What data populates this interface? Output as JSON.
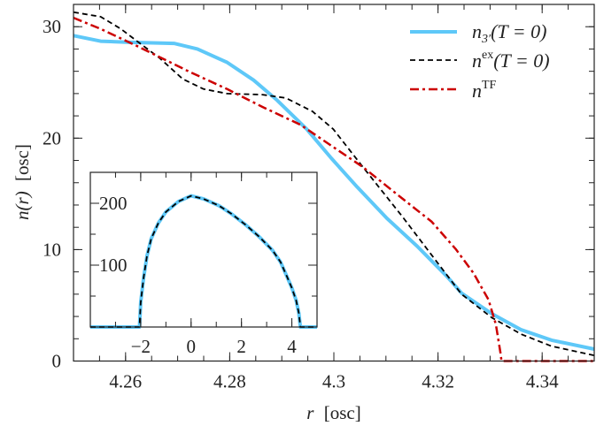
{
  "chart_data": [
    {
      "type": "line",
      "title": "",
      "xlabel": {
        "var": "r",
        "unit": "[osc]"
      },
      "ylabel": {
        "var": "n(r)",
        "unit": "[osc]"
      },
      "xlim": [
        4.25,
        4.35
      ],
      "ylim": [
        0,
        32
      ],
      "xticks": [
        "4.26",
        "4.28",
        "4.3",
        "4.32",
        "4.34"
      ],
      "yticks": [
        "0",
        "10",
        "20",
        "30"
      ],
      "grid": false,
      "legend_position": "top-right",
      "series": [
        {
          "name": {
            "base": "n",
            "sub": "3′",
            "sup": "",
            "tail": "(T = 0)"
          },
          "color": "#5ec8f8",
          "style": "solid",
          "x": [
            4.25,
            4.2552,
            4.2608,
            4.2693,
            4.2738,
            4.2795,
            4.2846,
            4.2891,
            4.2948,
            4.2995,
            4.3045,
            4.3102,
            4.316,
            4.3217,
            4.3245,
            4.3303,
            4.336,
            4.3418,
            4.35
          ],
          "y": [
            29.2,
            28.7,
            28.6,
            28.5,
            28.0,
            26.8,
            25.2,
            23.4,
            20.8,
            18.2,
            15.6,
            12.8,
            10.3,
            7.6,
            6.1,
            4.25,
            2.8,
            1.87,
            1.07
          ]
        },
        {
          "name": {
            "base": "n",
            "sub": "",
            "sup": "ex",
            "tail": "(T = 0)"
          },
          "color": "#000000",
          "style": "dashed",
          "x": [
            4.25,
            4.2552,
            4.2591,
            4.2625,
            4.2665,
            4.271,
            4.275,
            4.2795,
            4.2863,
            4.2908,
            4.2959,
            4.2999,
            4.3056,
            4.3131,
            4.3188,
            4.3245,
            4.3303,
            4.336,
            4.3418,
            4.35
          ],
          "y": [
            31.3,
            30.9,
            29.8,
            28.6,
            27.2,
            25.3,
            24.4,
            24.0,
            23.9,
            23.6,
            22.4,
            20.8,
            17.4,
            13.0,
            9.5,
            6.0,
            3.9,
            2.4,
            1.33,
            0.5
          ]
        },
        {
          "name": {
            "base": "n",
            "sub": "",
            "sup": "TF",
            "tail": ""
          },
          "color": "#cc0000",
          "style": "dash-dot",
          "x": [
            4.25,
            4.2552,
            4.2625,
            4.2721,
            4.2795,
            4.2863,
            4.2936,
            4.2999,
            4.3056,
            4.3131,
            4.3188,
            4.3234,
            4.3268,
            4.3297,
            4.3311,
            4.332,
            4.3322,
            4.35
          ],
          "y": [
            30.8,
            29.8,
            28.2,
            26.0,
            24.4,
            22.8,
            21.2,
            19.2,
            17.4,
            14.6,
            12.5,
            10.05,
            7.9,
            5.5,
            3.3,
            0.7,
            0,
            0
          ]
        }
      ]
    },
    {
      "type": "line",
      "title": "",
      "xlabel": "",
      "ylabel": "",
      "xlim": [
        -4,
        5
      ],
      "ylim": [
        0,
        250
      ],
      "xticks": [
        "−2",
        "0",
        "2",
        "4"
      ],
      "yticks": [
        "100",
        "200"
      ],
      "grid": false,
      "series": [
        {
          "color": "#5ec8f8",
          "style": "solid",
          "x": [
            -4,
            -2.05,
            -2.0,
            -1.88,
            -1.75,
            -1.58,
            -1.3,
            -1.0,
            -0.5,
            0,
            0.5,
            1.11,
            1.6,
            2.17,
            2.7,
            3.23,
            3.55,
            3.81,
            4.0,
            4.17,
            4.28,
            4.34,
            5
          ],
          "y": [
            0,
            0,
            40,
            81,
            115,
            143,
            168,
            186,
            203,
            212,
            207,
            196,
            183,
            165,
            146,
            124,
            105,
            81,
            63,
            43,
            22,
            0,
            0
          ]
        },
        {
          "color": "#000000",
          "style": "dashed",
          "x": [
            -4,
            -2.05,
            -2.0,
            -1.88,
            -1.75,
            -1.58,
            -1.3,
            -1.0,
            -0.5,
            0,
            0.5,
            1.11,
            1.6,
            2.17,
            2.7,
            3.23,
            3.55,
            3.81,
            4.0,
            4.17,
            4.28,
            4.34,
            5
          ],
          "y": [
            0,
            0,
            40,
            81,
            115,
            143,
            168,
            186,
            203,
            212,
            207,
            196,
            183,
            165,
            146,
            124,
            105,
            81,
            63,
            43,
            22,
            0,
            0
          ]
        }
      ]
    }
  ]
}
